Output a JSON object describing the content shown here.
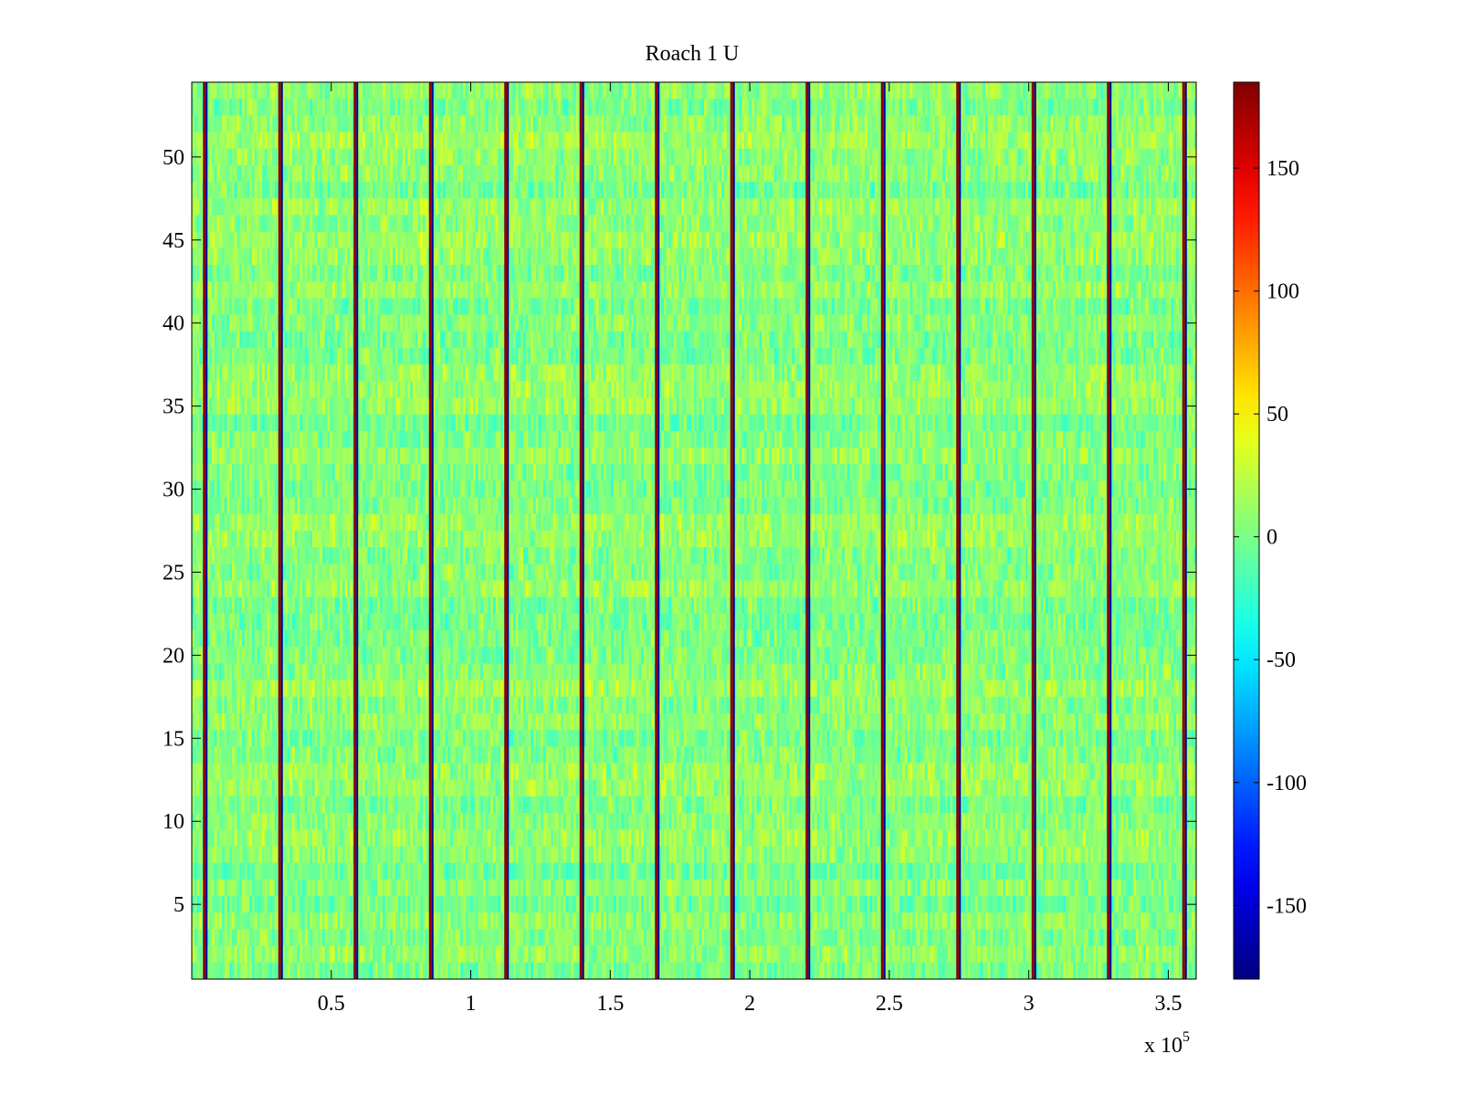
{
  "chart_data": {
    "type": "heatmap",
    "title": "Roach 1 U",
    "xlabel": "",
    "ylabel": "",
    "x_exponent_base": "x 10",
    "x_exponent_power": "5",
    "xlim": [
      0,
      360000
    ],
    "ylim": [
      0.5,
      54.5
    ],
    "xticks": [
      0.5,
      1,
      1.5,
      2,
      2.5,
      3,
      3.5
    ],
    "xtick_labels": [
      "0.5",
      "1",
      "1.5",
      "2",
      "2.5",
      "3",
      "3.5"
    ],
    "yticks": [
      5,
      10,
      15,
      20,
      25,
      30,
      35,
      40,
      45,
      50
    ],
    "ytick_labels": [
      "5",
      "10",
      "15",
      "20",
      "25",
      "30",
      "35",
      "40",
      "45",
      "50"
    ],
    "rows": 54,
    "columns": 400,
    "base_value": 5,
    "value_spread": 30,
    "spike_columns_x": [
      4500,
      31500,
      58500,
      85500,
      112500,
      139500,
      166500,
      193500,
      220500,
      247500,
      274500,
      301500,
      328500,
      355500
    ],
    "spike_value_high": 180,
    "spike_value_low": -170,
    "colorbar": {
      "clim": [
        -180,
        185
      ],
      "ticks": [
        -150,
        -100,
        -50,
        0,
        50,
        100,
        150
      ],
      "tick_labels": [
        "-150",
        "-100",
        "-50",
        "0",
        "50",
        "100",
        "150"
      ],
      "colormap": "jet"
    }
  }
}
